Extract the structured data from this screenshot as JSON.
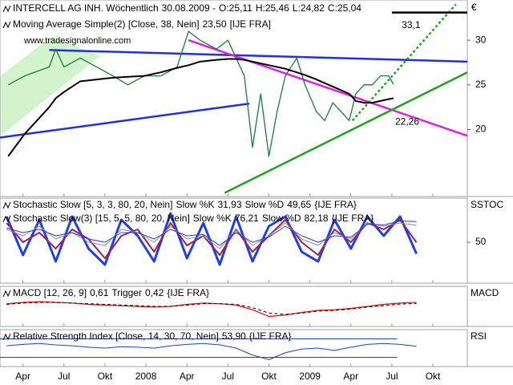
{
  "chart_data": [
    {
      "type": "line",
      "title": "INTERCELL AG INH. Wöchentlich",
      "quote": {
        "date": "30.08.2009 -",
        "open": "O:25,11",
        "high": "H:25,46",
        "low": "L:24,82",
        "close": "C:25,04"
      },
      "watermark": "www.tradesignalonline.com",
      "currency": "€",
      "source": "[IJE FRA]",
      "xlim": [
        2007.11,
        2009.96
      ],
      "xticks": [
        {
          "value": 2007.25,
          "label": "Apr"
        },
        {
          "value": 2007.5,
          "label": "Jul"
        },
        {
          "value": 2007.75,
          "label": "Okt"
        },
        2008,
        {
          "value": 2008.25,
          "label": "Apr"
        },
        {
          "value": 2008.5,
          "label": "Jul"
        },
        {
          "value": 2008.75,
          "label": "Okt"
        },
        2009,
        {
          "value": 2009.25,
          "label": "Apr"
        },
        {
          "value": 2009.5,
          "label": "Jul"
        },
        {
          "value": 2009.75,
          "label": "Okt"
        }
      ],
      "ylim": [
        12.5,
        34.5
      ],
      "yticks": [
        20,
        25,
        30
      ],
      "x": [
        2007.16,
        2007.26,
        2007.41,
        2007.45,
        2007.5,
        2007.6,
        2007.7,
        2007.8,
        2007.89,
        2007.99,
        2008.09,
        2008.19,
        2008.26,
        2008.33,
        2008.43,
        2008.5,
        2008.55,
        2008.6,
        2008.65,
        2008.7,
        2008.75,
        2008.8,
        2008.85,
        2008.92,
        2008.97,
        2009.04,
        2009.09,
        2009.14,
        2009.19,
        2009.24,
        2009.28,
        2009.33,
        2009.38,
        2009.43,
        2009.48,
        2009.51
      ],
      "series": [
        {
          "name": "INTERCELL AG INH.",
          "color": "#1a7a3a",
          "width": 1.3,
          "values": [
            25,
            26,
            27,
            29,
            27,
            28,
            27,
            26,
            25,
            26,
            26,
            27,
            31,
            30,
            29,
            30,
            28,
            26,
            18,
            24,
            17,
            22,
            26,
            28,
            25,
            22,
            21,
            23,
            22,
            21,
            24,
            25,
            25,
            26,
            26,
            25.04
          ]
        },
        {
          "name": "Moving Average Simple(2) [Close, 38, Nein]",
          "color": "#000000",
          "width": 2,
          "last_label": "23,50",
          "values": [
            17,
            19.5,
            22.5,
            23.5,
            24.2,
            25.4,
            25.6,
            25.8,
            25.9,
            26,
            26.4,
            26.9,
            27.2,
            27.6,
            27.8,
            27.9,
            27.9,
            27.8,
            27.6,
            27.4,
            27.2,
            27,
            26.8,
            26.4,
            26.1,
            25.6,
            25.2,
            24.8,
            24.4,
            24,
            23.2,
            23,
            23,
            23.2,
            23.4,
            23.5
          ]
        }
      ],
      "trendlines": [
        {
          "color": "#2030e0",
          "style": "solid",
          "x": [
            2007.41,
            2009.96
          ],
          "values": [
            28.9,
            27.6
          ]
        },
        {
          "color": "#2030e0",
          "style": "solid",
          "x": [
            2007.11,
            2008.63
          ],
          "values": [
            19.1,
            22.9
          ]
        },
        {
          "color": "#e020e0",
          "style": "solid",
          "x": [
            2008.26,
            2009.96
          ],
          "values": [
            30,
            19.3
          ]
        },
        {
          "color": "#22a022",
          "style": "solid",
          "x": [
            2008.48,
            2009.96
          ],
          "values": [
            12.9,
            26.4
          ]
        },
        {
          "color": "#22a022",
          "style": "dotted",
          "x": [
            2009.26,
            2009.89
          ],
          "values": [
            21,
            34
          ]
        },
        {
          "color": "#000000",
          "style": "solid",
          "x": [
            2009.5,
            2009.96
          ],
          "values": [
            33.1,
            33.1
          ]
        }
      ],
      "annotations": [
        {
          "x": 2009.56,
          "value": 33.1,
          "label": "33,1",
          "color": "#000000"
        },
        {
          "x": 2009.52,
          "value": 22.26,
          "label": "22,26",
          "color": "#22a022"
        }
      ]
    },
    {
      "type": "line",
      "axis_label": "SSTOC",
      "source": "{IJE FRA}",
      "labels": [
        "Stochastic Slow [5, 3, 3, 80, 20, Nein]",
        "Stochastic Slow(3) [15, 5, 5, 80, 20, Nein]"
      ],
      "ylim": [
        -13.75,
        118.75
      ],
      "yticks": [
        50
      ],
      "x": [
        2007.15,
        2007.25,
        2007.35,
        2007.45,
        2007.55,
        2007.65,
        2007.75,
        2007.85,
        2007.95,
        2008.05,
        2008.15,
        2008.25,
        2008.35,
        2008.45,
        2008.55,
        2008.65,
        2008.75,
        2008.85,
        2008.95,
        2009.05,
        2009.15,
        2009.25,
        2009.35,
        2009.45,
        2009.55,
        2009.65
      ],
      "series": [
        {
          "name": "Slow %K",
          "group": 0,
          "color": "#2040e0",
          "width": 3,
          "last_label": "31,93",
          "values": [
            90,
            30,
            85,
            20,
            90,
            40,
            15,
            85,
            60,
            20,
            95,
            25,
            80,
            15,
            90,
            20,
            75,
            90,
            35,
            20,
            85,
            40,
            90,
            60,
            90,
            31.93
          ]
        },
        {
          "name": "Slow %D",
          "group": 0,
          "color": "#a0205a",
          "width": 2,
          "last_label": "49,65",
          "values": [
            80,
            50,
            65,
            40,
            70,
            55,
            25,
            60,
            70,
            35,
            80,
            45,
            60,
            30,
            70,
            35,
            60,
            85,
            50,
            30,
            70,
            50,
            80,
            70,
            85,
            49.65
          ]
        },
        {
          "name": "Slow %K",
          "group": 1,
          "color": "#909090",
          "width": 1,
          "last_label": "76,21",
          "values": [
            70,
            60,
            75,
            55,
            65,
            50,
            45,
            70,
            65,
            50,
            75,
            55,
            60,
            40,
            70,
            45,
            60,
            80,
            55,
            45,
            65,
            55,
            80,
            75,
            80,
            76.21
          ]
        },
        {
          "name": "Slow %D",
          "group": 1,
          "color": "#2040e0",
          "width": 1,
          "last_label": "82,18",
          "values": [
            72,
            65,
            70,
            60,
            65,
            55,
            50,
            65,
            65,
            55,
            70,
            60,
            62,
            45,
            65,
            50,
            58,
            75,
            60,
            50,
            60,
            58,
            78,
            77,
            83,
            82.18
          ]
        }
      ]
    },
    {
      "type": "line",
      "axis_label": "MACD",
      "source": "{IJE FRA}",
      "labels": [
        "MACD [12, 26, 9]"
      ],
      "ylim": [
        -3,
        3
      ],
      "x": [
        2007.15,
        2007.25,
        2007.35,
        2007.45,
        2007.55,
        2007.65,
        2007.75,
        2007.85,
        2007.95,
        2008.05,
        2008.15,
        2008.25,
        2008.35,
        2008.45,
        2008.55,
        2008.65,
        2008.75,
        2008.85,
        2008.95,
        2009.05,
        2009.15,
        2009.25,
        2009.35,
        2009.45,
        2009.55,
        2009.65
      ],
      "series": [
        {
          "name": "",
          "group": 0,
          "color": "#e00000",
          "width": 1.2,
          "last_label": "0,61",
          "values": [
            0.4,
            0.6,
            0.7,
            0.6,
            0.5,
            0.3,
            0.2,
            0.1,
            0,
            -0.1,
            0,
            0.3,
            0.5,
            0.4,
            0.2,
            -0.5,
            -1.5,
            -1.3,
            -0.9,
            -0.6,
            -0.5,
            -0.3,
            0,
            0.3,
            0.5,
            0.61
          ]
        },
        {
          "name": "Trigger",
          "group": 0,
          "color": "#000000",
          "width": 1,
          "style": "dashed",
          "last_label": "0,42",
          "values": [
            0.3,
            0.5,
            0.6,
            0.6,
            0.5,
            0.4,
            0.3,
            0.2,
            0.1,
            0,
            0,
            0.2,
            0.4,
            0.4,
            0.3,
            -0.2,
            -1,
            -1.2,
            -1,
            -0.7,
            -0.6,
            -0.4,
            -0.1,
            0.1,
            0.35,
            0.42
          ]
        }
      ]
    },
    {
      "type": "line",
      "axis_label": "RSI",
      "source": "{IJE FRA}",
      "labels": [
        "Relative Strength Index [Close, 14, 30, 70, Nein]"
      ],
      "ylim": [
        10,
        90
      ],
      "levels": [
        30,
        70
      ],
      "x": [
        2007.15,
        2007.25,
        2007.35,
        2007.45,
        2007.55,
        2007.65,
        2007.75,
        2007.85,
        2007.95,
        2008.05,
        2008.15,
        2008.25,
        2008.35,
        2008.45,
        2008.55,
        2008.65,
        2008.75,
        2008.85,
        2008.95,
        2009.05,
        2009.15,
        2009.25,
        2009.35,
        2009.45,
        2009.55,
        2009.65
      ],
      "series": [
        {
          "name": "",
          "group": 0,
          "color": "#2040c0",
          "width": 1,
          "last_label": "53,90",
          "values": [
            55,
            58,
            60,
            57,
            55,
            52,
            50,
            53,
            52,
            50,
            55,
            58,
            60,
            57,
            50,
            35,
            25,
            40,
            48,
            50,
            45,
            52,
            58,
            60,
            58,
            53.9
          ]
        }
      ]
    }
  ]
}
